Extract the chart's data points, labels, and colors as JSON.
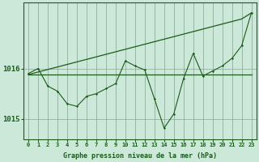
{
  "background_color": "#cce8d8",
  "plot_bg_color": "#cce8d8",
  "line_color": "#1a5c1a",
  "xlabel": "Graphe pression niveau de la mer (hPa)",
  "xlabel_fontsize": 6.0,
  "ytick_fontsize": 6.5,
  "xtick_fontsize": 5.0,
  "ylim": [
    1014.6,
    1017.3
  ],
  "xlim": [
    -0.5,
    23.5
  ],
  "yticks": [
    1015,
    1016
  ],
  "xticks": [
    0,
    1,
    2,
    3,
    4,
    5,
    6,
    7,
    8,
    9,
    10,
    11,
    12,
    13,
    14,
    15,
    16,
    17,
    18,
    19,
    20,
    21,
    22,
    23
  ],
  "y_zigzag": [
    1015.9,
    1016.0,
    1015.65,
    1015.55,
    1015.3,
    1015.25,
    1015.45,
    1015.5,
    1015.6,
    1015.7,
    1016.15,
    1016.05,
    1015.97,
    1015.4,
    1014.82,
    1015.1,
    1015.8,
    1016.3,
    1015.85,
    1015.95,
    1016.05,
    1016.2,
    1016.45,
    1017.1
  ],
  "y_flat": [
    1015.88,
    1015.88,
    1015.88,
    1015.88,
    1015.88,
    1015.88,
    1015.88,
    1015.88,
    1015.88,
    1015.88,
    1015.88,
    1015.88,
    1015.88,
    1015.88,
    1015.88,
    1015.88,
    1015.88,
    1015.88,
    1015.88,
    1015.88,
    1015.88,
    1015.88,
    1015.88,
    1015.88
  ],
  "y_diag": [
    1015.88,
    1015.93,
    1015.98,
    1016.03,
    1016.08,
    1016.13,
    1016.18,
    1016.23,
    1016.28,
    1016.33,
    1016.38,
    1016.43,
    1016.48,
    1016.53,
    1016.58,
    1016.63,
    1016.68,
    1016.73,
    1016.78,
    1016.83,
    1016.88,
    1016.93,
    1016.98,
    1017.1
  ]
}
